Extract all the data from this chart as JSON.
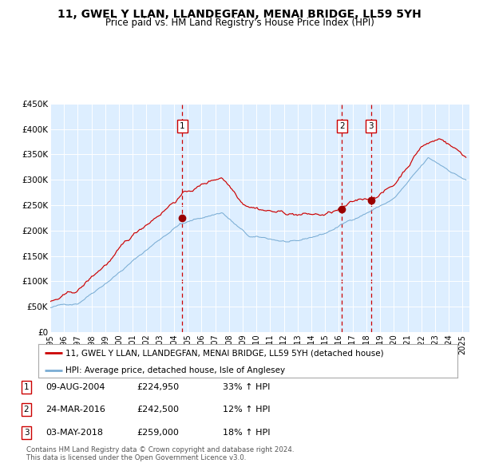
{
  "title": "11, GWEL Y LLAN, LLANDEGFAN, MENAI BRIDGE, LL59 5YH",
  "subtitle": "Price paid vs. HM Land Registry's House Price Index (HPI)",
  "red_label": "11, GWEL Y LLAN, LLANDEGFAN, MENAI BRIDGE, LL59 5YH (detached house)",
  "blue_label": "HPI: Average price, detached house, Isle of Anglesey",
  "footnote1": "Contains HM Land Registry data © Crown copyright and database right 2024.",
  "footnote2": "This data is licensed under the Open Government Licence v3.0.",
  "transactions": [
    {
      "num": 1,
      "date": "09-AUG-2004",
      "price": 224950,
      "pct": "33%",
      "dir": "↑",
      "label": "HPI"
    },
    {
      "num": 2,
      "date": "24-MAR-2016",
      "price": 242500,
      "pct": "12%",
      "dir": "↑",
      "label": "HPI"
    },
    {
      "num": 3,
      "date": "03-MAY-2018",
      "price": 259000,
      "pct": "18%",
      "dir": "↑",
      "label": "HPI"
    }
  ],
  "transaction_dates_decimal": [
    2004.604,
    2016.228,
    2018.336
  ],
  "transaction_prices": [
    224950,
    242500,
    259000
  ],
  "vline_color": "#cc0000",
  "red_line_color": "#cc0000",
  "blue_line_color": "#7aadd4",
  "dot_color": "#990000",
  "bg_color": "#ddeeff",
  "ylim": [
    0,
    450000
  ],
  "xlim_start": 1995.0,
  "xlim_end": 2025.5,
  "yticks": [
    0,
    50000,
    100000,
    150000,
    200000,
    250000,
    300000,
    350000,
    400000,
    450000
  ],
  "ytick_labels": [
    "£0",
    "£50K",
    "£100K",
    "£150K",
    "£200K",
    "£250K",
    "£300K",
    "£350K",
    "£400K",
    "£450K"
  ],
  "xtick_years": [
    1995,
    1996,
    1997,
    1998,
    1999,
    2000,
    2001,
    2002,
    2003,
    2004,
    2005,
    2006,
    2007,
    2008,
    2009,
    2010,
    2011,
    2012,
    2013,
    2014,
    2015,
    2016,
    2017,
    2018,
    2019,
    2020,
    2021,
    2022,
    2023,
    2024,
    2025
  ]
}
